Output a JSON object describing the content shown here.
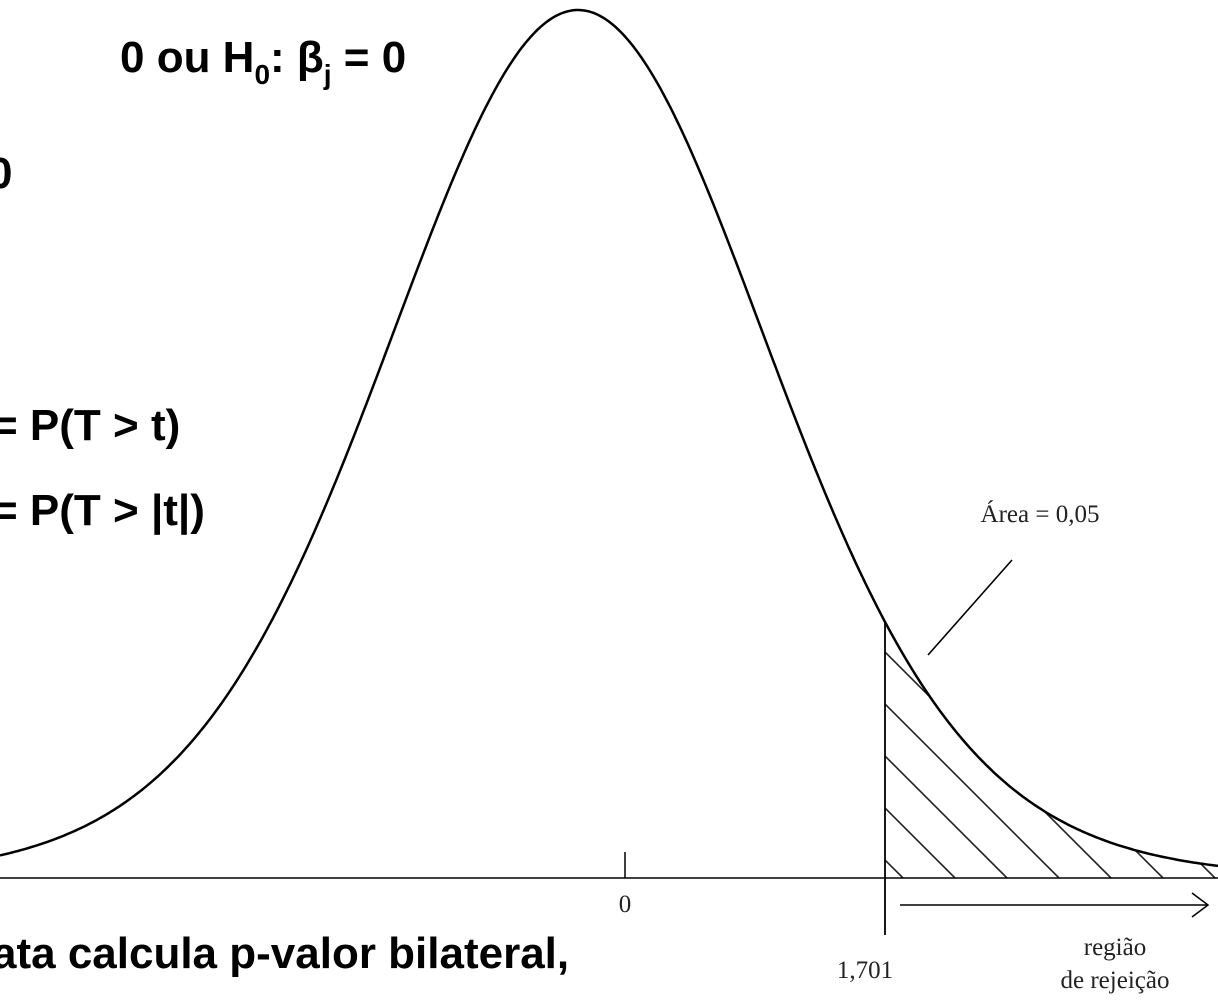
{
  "slide": {
    "hypothesis": [
      "0 ou H",
      "0",
      ": β",
      "j",
      " = 0"
    ],
    "line2": "0",
    "p_one_sided": "= P(T > t)",
    "p_two_sided": "= P(T > |t|)",
    "bottom_text": "ata calcula p-valor bilateral,"
  },
  "diagram": {
    "area_label": "Área = 0,05",
    "center_label": "0",
    "critical_label": "1,701",
    "region_label": [
      "região",
      "de rejeição"
    ]
  }
}
